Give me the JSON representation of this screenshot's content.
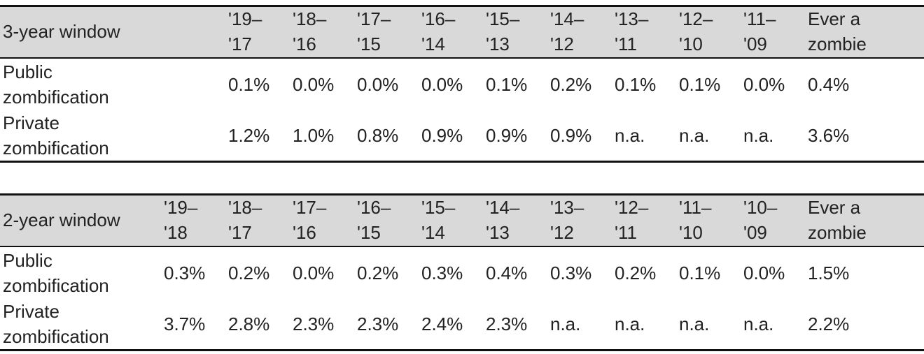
{
  "tables": [
    {
      "header": [
        "3-year window",
        "'19–\n'17",
        "'18–\n'16",
        "'17–\n'15",
        "'16–\n'14",
        "'15–\n'13",
        "'14–\n'12",
        "'13–\n'11",
        "'12–\n'10",
        "'11–\n'09",
        "Ever a\nzombie"
      ],
      "rows": [
        [
          "Public\nzombification",
          "0.1%",
          "0.0%",
          "0.0%",
          "0.0%",
          "0.1%",
          "0.2%",
          "0.1%",
          "0.1%",
          "0.0%",
          "0.4%"
        ],
        [
          "Private\nzombification",
          "1.2%",
          "1.0%",
          "0.8%",
          "0.9%",
          "0.9%",
          "0.9%",
          "n.a.",
          "n.a.",
          "n.a.",
          "3.6%"
        ]
      ]
    },
    {
      "header": [
        "2-year window",
        "'19–\n'18",
        "'18–\n'17",
        "'17–\n'16",
        "'16–\n'15",
        "'15–\n'14",
        "'14–\n'13",
        "'13–\n'12",
        "'12–\n'11",
        "'11–\n'10",
        "'10–\n'09",
        "Ever a\nzombie"
      ],
      "rows": [
        [
          "Public\nzombification",
          "0.3%",
          "0.2%",
          "0.0%",
          "0.2%",
          "0.3%",
          "0.4%",
          "0.3%",
          "0.2%",
          "0.1%",
          "0.0%",
          "1.5%"
        ],
        [
          "Private\nzombification",
          "3.7%",
          "2.8%",
          "2.3%",
          "2.3%",
          "2.4%",
          "2.3%",
          "n.a.",
          "n.a.",
          "n.a.",
          "n.a.",
          "2.2%"
        ]
      ]
    }
  ]
}
